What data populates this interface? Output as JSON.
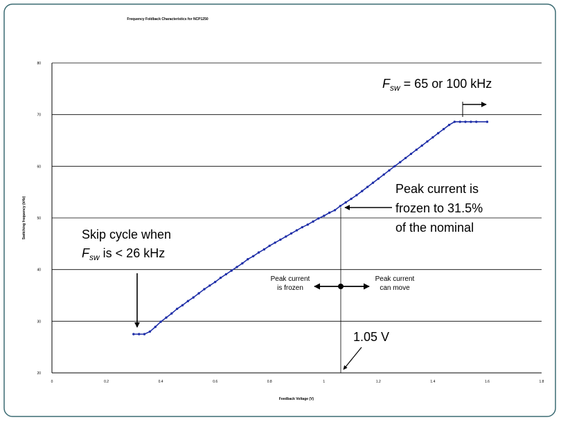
{
  "chart_data": {
    "type": "line",
    "title": "Frequency Foldback Characteristics for NCP1250",
    "xlabel": "Feedback Voltage (V)",
    "ylabel": "Switching frequency (kHz)",
    "xlim": [
      0,
      1.8
    ],
    "ylim": [
      20,
      80
    ],
    "x_ticks": [
      "0",
      "0.2",
      "0.4",
      "0.6",
      "0.8",
      "1",
      "1.2",
      "1.4",
      "1.6",
      "1.8"
    ],
    "y_ticks": [
      "20",
      "30",
      "40",
      "50",
      "60",
      "70",
      "80"
    ],
    "grid": "horizontal",
    "series_color": "#1f2fa8",
    "x": [
      0.3,
      0.32,
      0.34,
      0.36,
      0.38,
      0.4,
      0.42,
      0.44,
      0.46,
      0.48,
      0.5,
      0.52,
      0.54,
      0.56,
      0.58,
      0.6,
      0.62,
      0.64,
      0.66,
      0.68,
      0.7,
      0.72,
      0.74,
      0.76,
      0.78,
      0.8,
      0.82,
      0.84,
      0.86,
      0.88,
      0.9,
      0.92,
      0.94,
      0.96,
      0.98,
      1.0,
      1.02,
      1.04,
      1.06,
      1.08,
      1.1,
      1.12,
      1.14,
      1.16,
      1.18,
      1.2,
      1.22,
      1.24,
      1.26,
      1.28,
      1.3,
      1.32,
      1.34,
      1.36,
      1.38,
      1.4,
      1.42,
      1.44,
      1.46,
      1.48,
      1.5,
      1.52,
      1.54,
      1.56,
      1.6
    ],
    "y": [
      27.5,
      27.5,
      27.5,
      28.0,
      28.9,
      29.9,
      30.7,
      31.5,
      32.4,
      33.1,
      33.9,
      34.6,
      35.4,
      36.2,
      36.9,
      37.6,
      38.4,
      39.1,
      39.8,
      40.5,
      41.2,
      42.0,
      42.6,
      43.3,
      43.9,
      44.6,
      45.2,
      45.8,
      46.4,
      47.0,
      47.6,
      48.2,
      48.7,
      49.3,
      49.9,
      50.4,
      51.0,
      51.5,
      52.3,
      53.0,
      53.7,
      54.4,
      55.2,
      56.0,
      56.8,
      57.6,
      58.4,
      59.2,
      60.0,
      60.8,
      61.6,
      62.4,
      63.2,
      64.0,
      64.8,
      65.6,
      66.4,
      67.2,
      68.0,
      68.6,
      68.6,
      68.6,
      68.6,
      68.6,
      68.6
    ],
    "annotations": {
      "skip_line1": "Skip cycle when",
      "skip_f": "F",
      "skip_sub": "sw",
      "skip_rest": " is < 26 kHz",
      "fsw_f": "F",
      "fsw_sub": "sw",
      "fsw_rest": " = 65 or 100 kHz",
      "peak_line1": "Peak current is",
      "peak_line2": "frozen to 31.5%",
      "peak_line3": "of the nominal",
      "frozen_line1": "Peak current",
      "frozen_line2": "is frozen",
      "move_line1": "Peak current",
      "move_line2": "can move",
      "voltage_marker": "1.05 V"
    }
  }
}
